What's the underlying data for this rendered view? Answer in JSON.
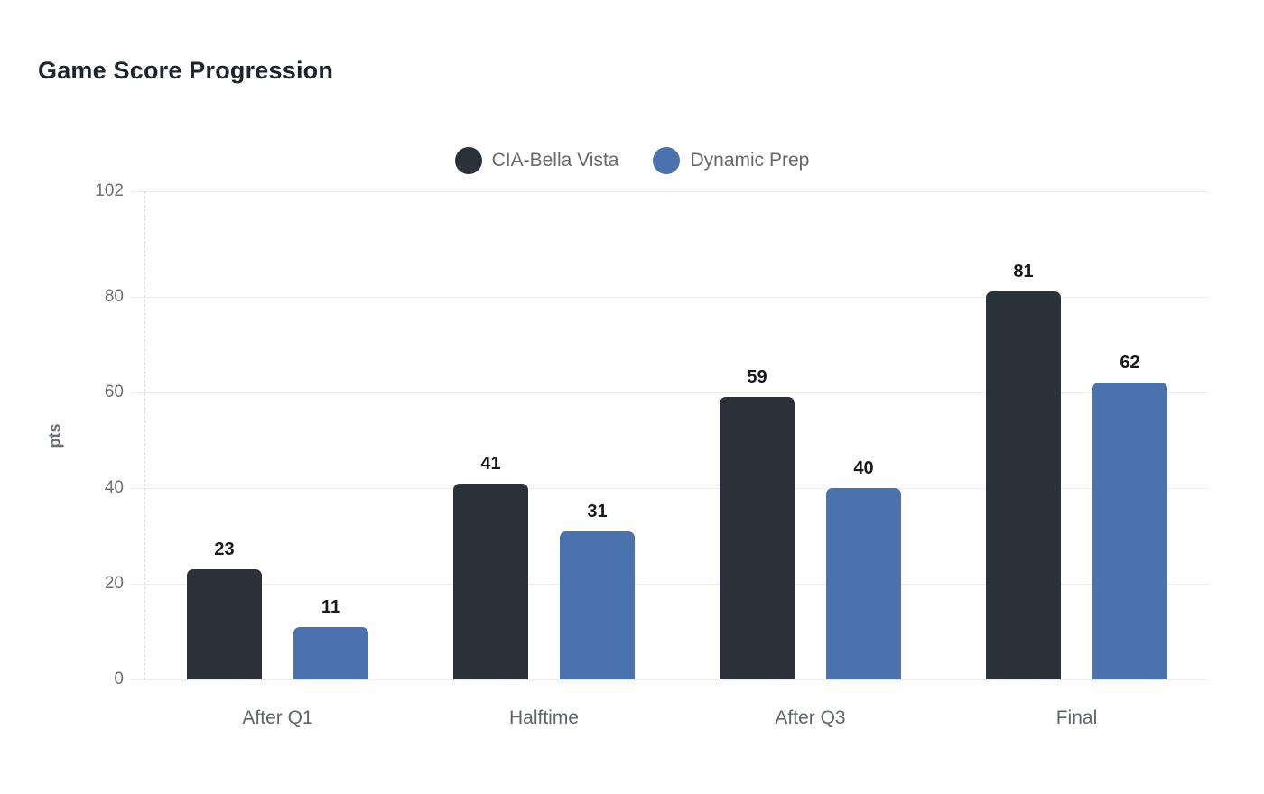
{
  "title": "Game Score Progression",
  "chart_data": {
    "type": "bar",
    "title": "Game Score Progression",
    "categories": [
      "After Q1",
      "Halftime",
      "After Q3",
      "Final"
    ],
    "series": [
      {
        "name": "CIA-Bella Vista",
        "color": "#2b3138",
        "values": [
          23,
          41,
          59,
          81
        ]
      },
      {
        "name": "Dynamic Prep",
        "color": "#4a72ad",
        "values": [
          11,
          31,
          40,
          62
        ]
      }
    ],
    "xlabel": "",
    "ylabel": "pts",
    "ylim": [
      0,
      102
    ],
    "yticks": [
      0,
      20,
      40,
      60,
      80,
      102
    ],
    "grid": true,
    "legend_position": "top-center",
    "value_labels": true
  },
  "colors": {
    "background": "#ffffff",
    "title_text": "#1f242a",
    "series_dark": "#2b3138",
    "series_blue": "#4a72ad",
    "axis_text": "#6b6f73",
    "category_text": "#5e646a",
    "value_label_text": "#17191c",
    "gridline": "#ececec",
    "axis_dash": "#dcdcdc"
  }
}
